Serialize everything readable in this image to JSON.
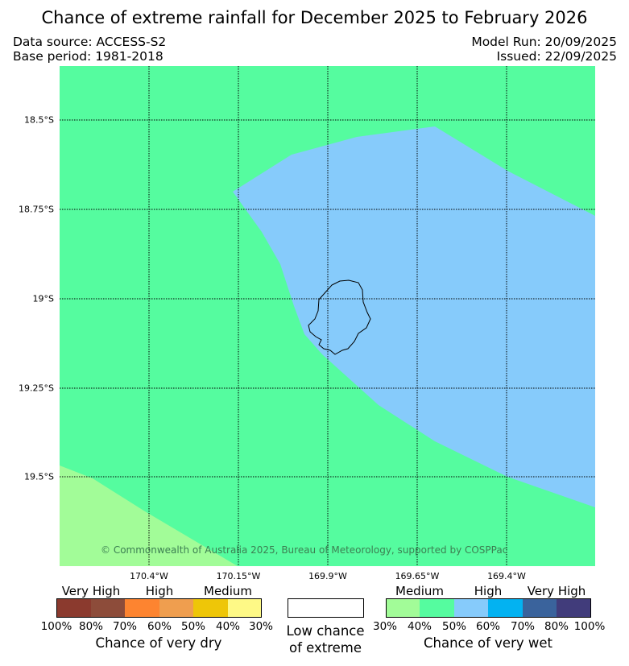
{
  "header": {
    "title": "Chance of extreme rainfall for December 2025 to February 2026",
    "data_source": "Data source: ACCESS-S2",
    "base_period": "Base period: 1981-2018",
    "model_run": "Model Run: 20/09/2025",
    "issued": "Issued: 22/09/2025"
  },
  "map": {
    "lat_labels": [
      "18.5°S",
      "18.75°S",
      "19°S",
      "19.25°S",
      "19.5°S"
    ],
    "lon_labels": [
      "170.4°W",
      "170.15°W",
      "169.9°W",
      "169.65°W",
      "169.4°W"
    ],
    "copyright": "© Commonwealth of Australia 2025, Bureau of Meteorology, supported by COSPPac",
    "region_colors": {
      "wet_medium_30_40": "#a2fc98",
      "wet_medium_40_50": "#55fc9f",
      "wet_high_50_60": "#86cbfb"
    }
  },
  "legend": {
    "dry": {
      "tiers": [
        "Very High",
        "High",
        "Medium"
      ],
      "colors": [
        "#8b3a2e",
        "#8d4c3a",
        "#fd8430",
        "#ef9e4f",
        "#eec608",
        "#fef986"
      ],
      "ticks": [
        "100%",
        "80%",
        "70%",
        "60%",
        "50%",
        "40%",
        "30%"
      ],
      "caption": "Chance of very dry"
    },
    "neutral": {
      "color": "#ffffff",
      "caption_line1": "Low chance",
      "caption_line2": "of extreme"
    },
    "wet": {
      "tiers": [
        "Medium",
        "High",
        "Very High"
      ],
      "colors": [
        "#a2fc98",
        "#55fc9f",
        "#86cbfb",
        "#03b2f1",
        "#3a639c",
        "#413c7b"
      ],
      "ticks": [
        "30%",
        "40%",
        "50%",
        "60%",
        "70%",
        "80%",
        "100%"
      ],
      "caption": "Chance of very wet"
    }
  }
}
